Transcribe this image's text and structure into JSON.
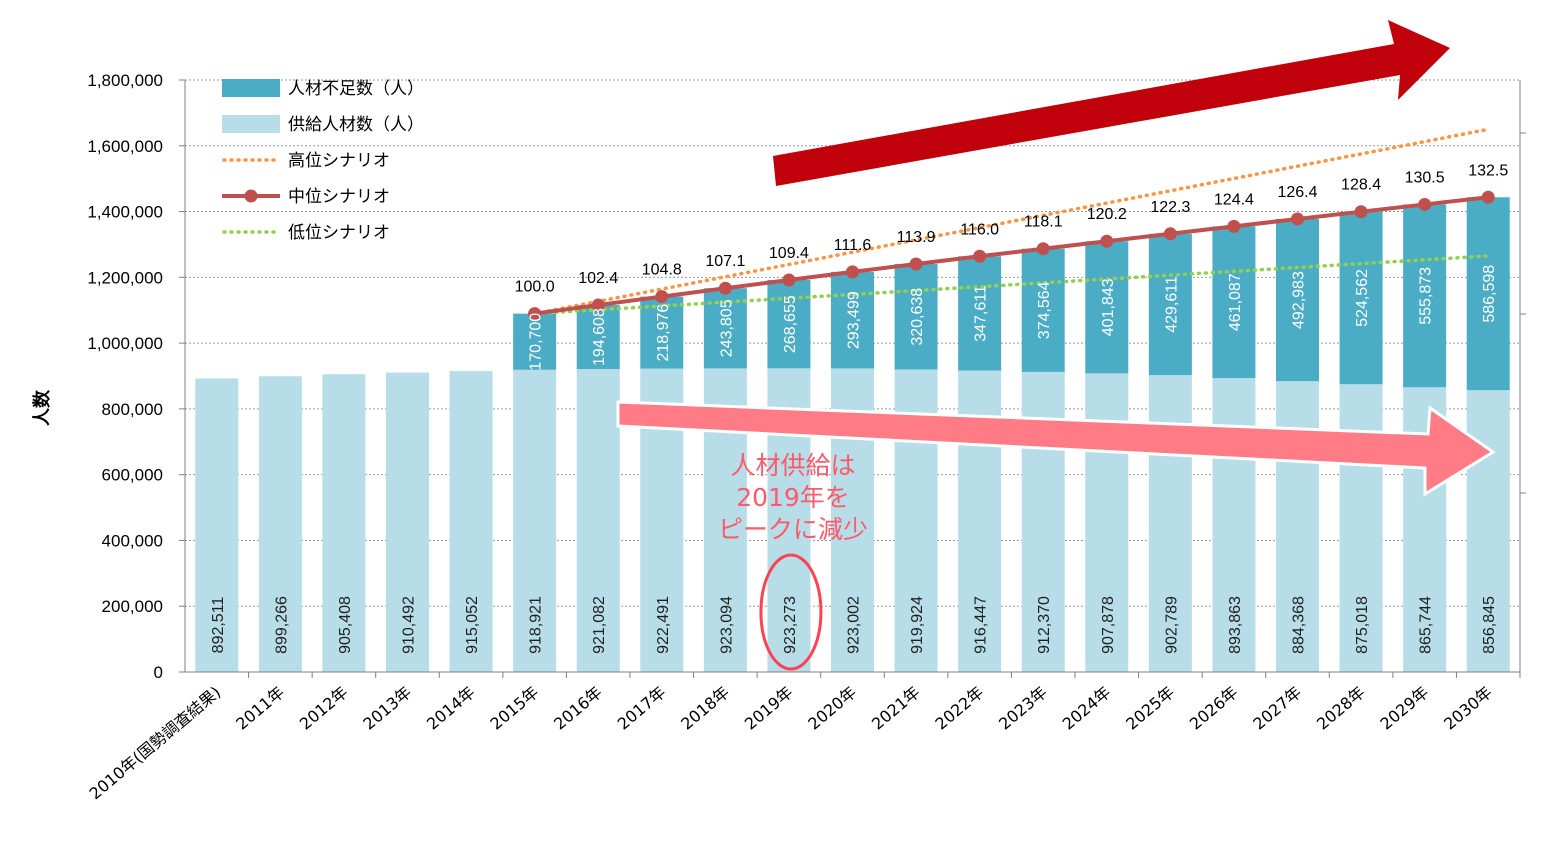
{
  "chart_data": {
    "type": "bar",
    "stacked": true,
    "ylabel": "人数",
    "ylim": [
      0,
      1800000
    ],
    "yticks": [
      "0",
      "200,000",
      "400,000",
      "600,000",
      "800,000",
      "1,000,000",
      "1,200,000",
      "1,400,000",
      "1,600,000",
      "1,800,000"
    ],
    "grid": true,
    "legend_position": "top-left",
    "categories": [
      "2010年(国勢調査結果)",
      "2011年",
      "2012年",
      "2013年",
      "2014年",
      "2015年",
      "2016年",
      "2017年",
      "2018年",
      "2019年",
      "2020年",
      "2021年",
      "2022年",
      "2023年",
      "2024年",
      "2025年",
      "2026年",
      "2027年",
      "2028年",
      "2029年",
      "2030年"
    ],
    "series": [
      {
        "name": "供給人材数(人)",
        "color": "#b7dde8",
        "values": [
          892511,
          899266,
          905408,
          910492,
          915052,
          918921,
          921082,
          922491,
          923094,
          923273,
          923002,
          919924,
          916447,
          912370,
          907878,
          902789,
          893863,
          884368,
          875018,
          865744,
          856845
        ],
        "labels": [
          "892,511",
          "899,266",
          "905,408",
          "910,492",
          "915,052",
          "918,921",
          "921,082",
          "922,491",
          "923,094",
          "923,273",
          "923,002",
          "919,924",
          "916,447",
          "912,370",
          "907,878",
          "902,789",
          "893,863",
          "884,368",
          "875,018",
          "865,744",
          "856,845"
        ]
      },
      {
        "name": "人材不足数(人)",
        "color": "#4bacc6",
        "values": [
          null,
          null,
          null,
          null,
          null,
          170700,
          194608,
          218976,
          243805,
          268655,
          293499,
          320638,
          347611,
          374564,
          401843,
          429611,
          461087,
          492983,
          524562,
          555873,
          586598
        ],
        "labels": [
          "",
          "",
          "",
          "",
          "",
          "170,700",
          "194,608",
          "218,976",
          "243,805",
          "268,655",
          "293,499",
          "320,638",
          "347,611",
          "374,564",
          "401,843",
          "429,611",
          "461,087",
          "492,983",
          "524,562",
          "555,873",
          "586,598"
        ]
      }
    ],
    "scenarios": [
      {
        "name": "高位シナリオ",
        "color": "#f79646",
        "style": "dotted",
        "start": [
          2015,
          1089621
        ],
        "end": [
          2030,
          1650000
        ]
      },
      {
        "name": "中位シナリオ",
        "color": "#c0504d",
        "style": "line-markers",
        "values": [
          null,
          null,
          null,
          null,
          null,
          1089621,
          1115690,
          1141467,
          1166899,
          1191928,
          1216501,
          1240562,
          1264058,
          1286934,
          1309721,
          1332400,
          1354950,
          1377351,
          1399580,
          1421617,
          1443443
        ],
        "index_labels": [
          "",
          "",
          "",
          "",
          "",
          "100.0",
          "102.4",
          "104.8",
          "107.1",
          "109.4",
          "111.6",
          "113.9",
          "116.0",
          "118.1",
          "120.2",
          "122.3",
          "124.4",
          "126.4",
          "128.4",
          "130.5",
          "132.5"
        ]
      },
      {
        "name": "低位シナリオ",
        "color": "#92d050",
        "style": "dotted",
        "start": [
          2015,
          1089621
        ],
        "end": [
          2030,
          1265000
        ]
      }
    ],
    "legend": [
      {
        "label": "人材不足数（人）",
        "kind": "bar",
        "color": "#4bacc6"
      },
      {
        "label": "供給人材数（人）",
        "kind": "bar",
        "color": "#b7dde8"
      },
      {
        "label": "高位シナリオ",
        "kind": "dotted",
        "color": "#f79646"
      },
      {
        "label": "中位シナリオ",
        "kind": "line-marker",
        "color": "#c0504d"
      },
      {
        "label": "低位シナリオ",
        "kind": "dotted",
        "color": "#92d050"
      }
    ],
    "annotation": {
      "lines": [
        "人材供給は",
        "2019年を",
        "ピークに減少"
      ],
      "color": "#ff5a6b",
      "highlight_category": "2019年"
    }
  }
}
